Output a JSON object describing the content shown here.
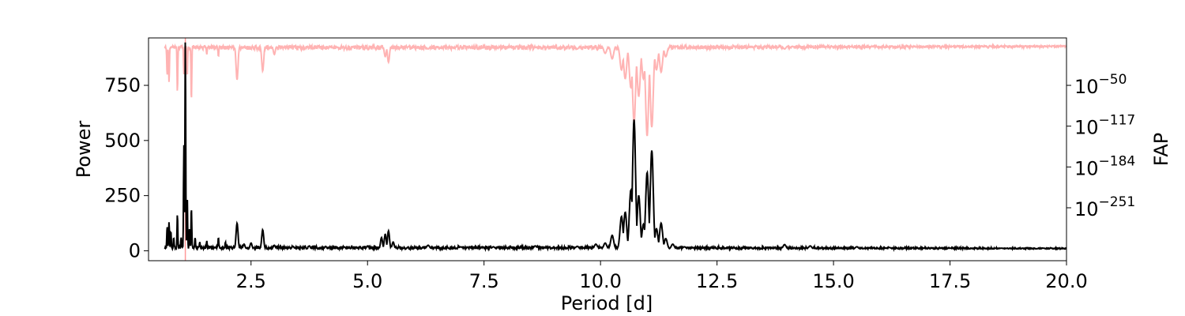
{
  "chart_data": {
    "type": "line",
    "xlabel": "Period [d]",
    "ylabel": "Power",
    "y2label": "FAP",
    "xlim": [
      0.3,
      20.0
    ],
    "ylim": [
      -45,
      965
    ],
    "x_ticks": [
      2.5,
      5.0,
      7.5,
      10.0,
      12.5,
      15.0,
      17.5,
      20.0
    ],
    "x_tick_labels": [
      "2.5",
      "5.0",
      "7.5",
      "10.0",
      "12.5",
      "15.0",
      "17.5",
      "20.0"
    ],
    "y_ticks": [
      0,
      250,
      500,
      750
    ],
    "y_tick_labels": [
      "0",
      "250",
      "500",
      "750"
    ],
    "y2_scale": "log",
    "y2_ticks": [
      {
        "base": "10",
        "exp": "−50",
        "power": 750
      },
      {
        "base": "10",
        "exp": "−117",
        "power": 565
      },
      {
        "base": "10",
        "exp": "−184",
        "power": 380
      },
      {
        "base": "10",
        "exp": "−251",
        "power": 195
      }
    ],
    "colors": {
      "power": "#000000",
      "fap": "#ffb3b3",
      "marker": "#ff9999",
      "frame": "#000000"
    },
    "series": [
      {
        "role": "power",
        "baseline": 8,
        "peaks": [
          {
            "x": 0.7,
            "y": 110
          },
          {
            "x": 0.74,
            "y": 130
          },
          {
            "x": 0.78,
            "y": 90
          },
          {
            "x": 0.84,
            "y": 60
          },
          {
            "x": 0.92,
            "y": 165
          },
          {
            "x": 1.0,
            "y": 60
          },
          {
            "x": 1.06,
            "y": 480
          },
          {
            "x": 1.09,
            "y": 950
          },
          {
            "x": 1.13,
            "y": 250
          },
          {
            "x": 1.18,
            "y": 100
          },
          {
            "x": 1.22,
            "y": 195
          },
          {
            "x": 1.3,
            "y": 60
          },
          {
            "x": 1.4,
            "y": 40
          },
          {
            "x": 1.55,
            "y": 45
          },
          {
            "x": 1.8,
            "y": 60
          },
          {
            "x": 1.95,
            "y": 40
          },
          {
            "x": 2.2,
            "y": 125
          },
          {
            "x": 2.35,
            "y": 30
          },
          {
            "x": 2.5,
            "y": 35
          },
          {
            "x": 2.75,
            "y": 95
          },
          {
            "x": 3.0,
            "y": 25
          },
          {
            "x": 3.4,
            "y": 20
          },
          {
            "x": 3.75,
            "y": 22
          },
          {
            "x": 4.1,
            "y": 20
          },
          {
            "x": 4.5,
            "y": 18
          },
          {
            "x": 5.0,
            "y": 22
          },
          {
            "x": 5.3,
            "y": 60
          },
          {
            "x": 5.38,
            "y": 75
          },
          {
            "x": 5.45,
            "y": 90
          },
          {
            "x": 5.55,
            "y": 40
          },
          {
            "x": 6.3,
            "y": 25
          },
          {
            "x": 7.0,
            "y": 18
          },
          {
            "x": 7.7,
            "y": 18
          },
          {
            "x": 8.6,
            "y": 22
          },
          {
            "x": 9.5,
            "y": 20
          },
          {
            "x": 9.9,
            "y": 30
          },
          {
            "x": 10.1,
            "y": 35
          },
          {
            "x": 10.25,
            "y": 70
          },
          {
            "x": 10.45,
            "y": 155
          },
          {
            "x": 10.53,
            "y": 175
          },
          {
            "x": 10.65,
            "y": 275
          },
          {
            "x": 10.72,
            "y": 595
          },
          {
            "x": 10.82,
            "y": 250
          },
          {
            "x": 10.92,
            "y": 120
          },
          {
            "x": 11.0,
            "y": 355
          },
          {
            "x": 11.1,
            "y": 455
          },
          {
            "x": 11.2,
            "y": 100
          },
          {
            "x": 11.3,
            "y": 125
          },
          {
            "x": 11.4,
            "y": 55
          },
          {
            "x": 11.55,
            "y": 30
          },
          {
            "x": 11.8,
            "y": 18
          },
          {
            "x": 13.95,
            "y": 28
          },
          {
            "x": 14.5,
            "y": 22
          },
          {
            "x": 15.5,
            "y": 18
          },
          {
            "x": 16.2,
            "y": 15
          },
          {
            "x": 17.5,
            "y": 12
          },
          {
            "x": 18.6,
            "y": 12
          },
          {
            "x": 19.5,
            "y": 12
          }
        ]
      },
      {
        "role": "fap",
        "baseline": 930,
        "dips": [
          {
            "x": 0.7,
            "y": 795
          },
          {
            "x": 0.74,
            "y": 765
          },
          {
            "x": 0.92,
            "y": 720
          },
          {
            "x": 1.06,
            "y": 800
          },
          {
            "x": 1.13,
            "y": 790
          },
          {
            "x": 1.22,
            "y": 680
          },
          {
            "x": 1.55,
            "y": 890
          },
          {
            "x": 1.8,
            "y": 880
          },
          {
            "x": 2.2,
            "y": 775
          },
          {
            "x": 2.75,
            "y": 815
          },
          {
            "x": 3.0,
            "y": 890
          },
          {
            "x": 5.38,
            "y": 880
          },
          {
            "x": 5.45,
            "y": 855
          },
          {
            "x": 6.3,
            "y": 915
          },
          {
            "x": 9.5,
            "y": 915
          },
          {
            "x": 10.1,
            "y": 895
          },
          {
            "x": 10.25,
            "y": 870
          },
          {
            "x": 10.45,
            "y": 820
          },
          {
            "x": 10.53,
            "y": 780
          },
          {
            "x": 10.65,
            "y": 740
          },
          {
            "x": 10.72,
            "y": 580
          },
          {
            "x": 10.82,
            "y": 700
          },
          {
            "x": 10.92,
            "y": 780
          },
          {
            "x": 11.0,
            "y": 520
          },
          {
            "x": 11.1,
            "y": 560
          },
          {
            "x": 11.2,
            "y": 820
          },
          {
            "x": 11.3,
            "y": 810
          },
          {
            "x": 11.4,
            "y": 880
          },
          {
            "x": 13.95,
            "y": 915
          }
        ]
      }
    ],
    "marker_x": 1.09
  }
}
